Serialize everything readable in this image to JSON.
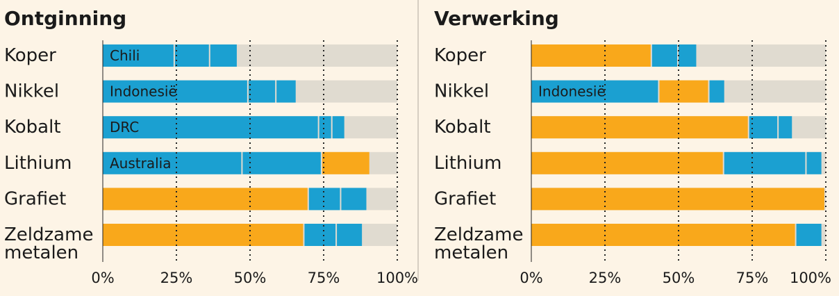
{
  "colors": {
    "background": "#fdf4e6",
    "track": "#e0dbd0",
    "china": "#f9a81b",
    "other": "#1ba0d1",
    "gridline": "#222222",
    "divider": "#c9c2b6"
  },
  "chart_data": [
    {
      "type": "bar",
      "orientation": "horizontal",
      "stacked": true,
      "title": "Ontginning",
      "categories": [
        "Koper",
        "Nikkel",
        "Kobalt",
        "Lithium",
        "Grafiet",
        "Zeldzame metalen"
      ],
      "xlim": [
        0,
        100
      ],
      "xticks": [
        "0%",
        "25%",
        "50%",
        "75%",
        "100%"
      ],
      "grid": "dotted vertical",
      "bars": [
        {
          "category": "Koper",
          "segments": [
            {
              "value": 24.5,
              "color": "other",
              "label": "Chili"
            },
            {
              "value": 12,
              "color": "other",
              "label": ""
            },
            {
              "value": 9,
              "color": "other",
              "label": ""
            }
          ]
        },
        {
          "category": "Nikkel",
          "segments": [
            {
              "value": 49.5,
              "color": "other",
              "label": "Indonesië"
            },
            {
              "value": 9.5,
              "color": "other",
              "label": ""
            },
            {
              "value": 6.5,
              "color": "other",
              "label": ""
            }
          ]
        },
        {
          "category": "Kobalt",
          "segments": [
            {
              "value": 73.5,
              "color": "other",
              "label": "DRC"
            },
            {
              "value": 4.5,
              "color": "other",
              "label": ""
            },
            {
              "value": 4,
              "color": "other",
              "label": ""
            }
          ]
        },
        {
          "category": "Lithium",
          "segments": [
            {
              "value": 47.5,
              "color": "other",
              "label": "Australia"
            },
            {
              "value": 27,
              "color": "other",
              "label": ""
            },
            {
              "value": 16,
              "color": "china",
              "label": ""
            }
          ]
        },
        {
          "category": "Grafiet",
          "segments": [
            {
              "value": 70,
              "color": "china",
              "label": ""
            },
            {
              "value": 11,
              "color": "other",
              "label": ""
            },
            {
              "value": 8.5,
              "color": "other",
              "label": ""
            }
          ]
        },
        {
          "category": "Zeldzame metalen",
          "segments": [
            {
              "value": 68.5,
              "color": "china",
              "label": ""
            },
            {
              "value": 11,
              "color": "other",
              "label": ""
            },
            {
              "value": 8.5,
              "color": "other",
              "label": ""
            }
          ]
        }
      ]
    },
    {
      "type": "bar",
      "orientation": "horizontal",
      "stacked": true,
      "title": "Verwerking",
      "categories": [
        "Koper",
        "Nikkel",
        "Kobalt",
        "Lithium",
        "Grafiet",
        "Zeldzame metalen"
      ],
      "xlim": [
        0,
        100
      ],
      "xticks": [
        "0%",
        "25%",
        "50%",
        "75%",
        "100%"
      ],
      "grid": "dotted vertical",
      "bars": [
        {
          "category": "Koper",
          "segments": [
            {
              "value": 41,
              "color": "china",
              "label": ""
            },
            {
              "value": 9,
              "color": "other",
              "label": ""
            },
            {
              "value": 6,
              "color": "other",
              "label": ""
            }
          ]
        },
        {
          "category": "Nikkel",
          "segments": [
            {
              "value": 43.5,
              "color": "other",
              "label": "Indonesië"
            },
            {
              "value": 17,
              "color": "china",
              "label": ""
            },
            {
              "value": 5,
              "color": "other",
              "label": ""
            }
          ]
        },
        {
          "category": "Kobalt",
          "segments": [
            {
              "value": 74,
              "color": "china",
              "label": ""
            },
            {
              "value": 10,
              "color": "other",
              "label": ""
            },
            {
              "value": 4.5,
              "color": "other",
              "label": ""
            }
          ]
        },
        {
          "category": "Lithium",
          "segments": [
            {
              "value": 65.5,
              "color": "china",
              "label": ""
            },
            {
              "value": 28,
              "color": "other",
              "label": ""
            },
            {
              "value": 5,
              "color": "other",
              "label": ""
            }
          ]
        },
        {
          "category": "Grafiet",
          "segments": [
            {
              "value": 99.5,
              "color": "china",
              "label": ""
            }
          ]
        },
        {
          "category": "Zeldzame metalen",
          "segments": [
            {
              "value": 90,
              "color": "china",
              "label": ""
            },
            {
              "value": 8.5,
              "color": "other",
              "label": ""
            }
          ]
        }
      ]
    }
  ]
}
